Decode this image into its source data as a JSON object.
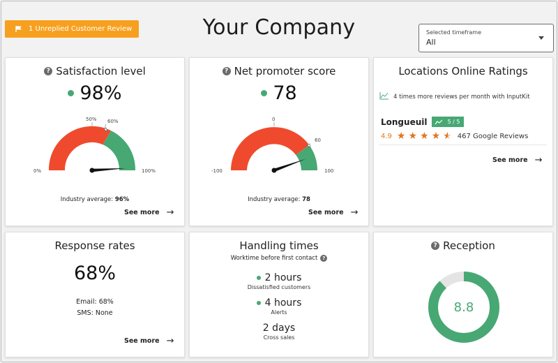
{
  "alert": {
    "label": "1 Unreplied Customer Review",
    "icon": "flag-icon"
  },
  "company": "Your Company",
  "timeframe": {
    "label": "Selected timeframe",
    "value": "All"
  },
  "colors": {
    "green": "#47a874",
    "red": "#f04a2e",
    "orange": "#e2761f",
    "alert": "#f7a01f"
  },
  "satisfaction": {
    "title": "Satisfaction level",
    "value": "98%",
    "labels": {
      "min": "0%",
      "l50": "50%",
      "l60": "60%",
      "max": "100%"
    },
    "needle": 98,
    "industry_label": "Industry average:",
    "industry_value": "96%",
    "see_more": "See more"
  },
  "nps": {
    "title": "Net promoter score",
    "value": "78",
    "labels": {
      "min": "-100",
      "zero": "0",
      "l60": "60",
      "max": "100"
    },
    "needle": 78,
    "industry_label": "Industry average:",
    "industry_value": "78",
    "see_more": "See more"
  },
  "locations": {
    "title": "Locations Online Ratings",
    "trend": "4 times more reviews per month with InputKit",
    "name": "Longueuil",
    "badge": "5 / 5",
    "rating": "4.9",
    "stars": 4.9,
    "reviews": "467 Google Reviews",
    "see_more": "See more"
  },
  "response": {
    "title": "Response rates",
    "value": "68%",
    "email": "Email: 68%",
    "sms": "SMS: None",
    "see_more": "See more"
  },
  "handling": {
    "title": "Handling times",
    "subtitle": "Worktime before first contact",
    "items": [
      {
        "value": "2 hours",
        "label": "Dissatisfied customers"
      },
      {
        "value": "4 hours",
        "label": "Alerts"
      },
      {
        "value": "2 days",
        "label": "Cross sales"
      }
    ]
  },
  "reception": {
    "title": "Reception",
    "value": "8.8",
    "score": 8.8,
    "max": 10
  }
}
